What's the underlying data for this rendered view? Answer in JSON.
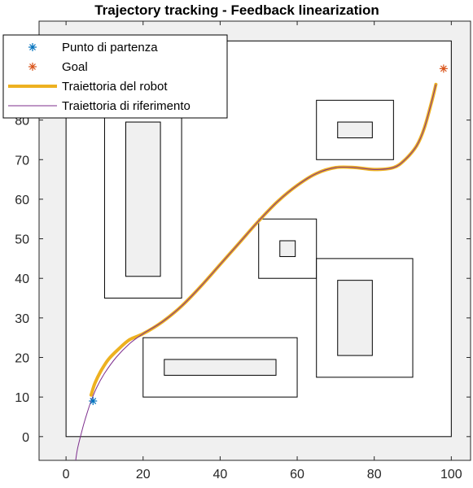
{
  "chart_data": {
    "type": "line",
    "title": "Trajectory tracking - Feedback linearization",
    "xlabel": "",
    "ylabel": "",
    "xlim": [
      -7,
      105
    ],
    "ylim": [
      -6,
      105
    ],
    "xticks": [
      0,
      20,
      40,
      60,
      80,
      100
    ],
    "yticks": [
      0,
      10,
      20,
      30,
      40,
      50,
      60,
      70,
      80
    ],
    "grid": false,
    "legend_position": "top-left",
    "background_color": "#f0f0f0",
    "obstacles_outer": [
      {
        "x0": 10,
        "x1": 30,
        "y0": 35,
        "y1": 84
      },
      {
        "x0": 20,
        "x1": 60,
        "y0": 10,
        "y1": 25
      },
      {
        "x0": 50,
        "x1": 65,
        "y0": 40,
        "y1": 55
      },
      {
        "x0": 65,
        "x1": 90,
        "y0": 15,
        "y1": 45
      },
      {
        "x0": 65,
        "x1": 85,
        "y0": 70,
        "y1": 85
      }
    ],
    "obstacles_inner": [
      {
        "x0": 15.5,
        "x1": 24.5,
        "y0": 40.5,
        "y1": 79.5
      },
      {
        "x0": 25.5,
        "x1": 54.5,
        "y0": 15.5,
        "y1": 19.5
      },
      {
        "x0": 55.5,
        "x1": 59.5,
        "y0": 45.5,
        "y1": 49.5
      },
      {
        "x0": 70.5,
        "x1": 79.5,
        "y0": 20.5,
        "y1": 39.5
      },
      {
        "x0": 70.5,
        "x1": 79.5,
        "y0": 75.5,
        "y1": 79.5
      }
    ],
    "workspace": {
      "x0": 0,
      "x1": 100,
      "y0": 0,
      "y1": 100
    },
    "series": [
      {
        "name": "Punto di partenza",
        "marker": "asterisk",
        "color": "#0072bd",
        "x": [
          7
        ],
        "y": [
          9
        ]
      },
      {
        "name": "Goal",
        "marker": "asterisk",
        "color": "#d95319",
        "x": [
          98
        ],
        "y": [
          93
        ]
      },
      {
        "name": "Traiettoria del robot",
        "line_style": "thick",
        "color": "#edb120",
        "x": [
          6.5,
          7.5,
          9,
          11,
          13.5,
          16.5,
          20,
          25,
          30,
          35,
          40,
          45,
          50,
          55,
          60,
          65,
          70,
          75,
          80,
          85,
          88,
          91,
          93,
          95,
          96
        ],
        "y": [
          10.5,
          13.5,
          16.5,
          19.5,
          22,
          24.5,
          26,
          29,
          33,
          38,
          43.5,
          49,
          54.5,
          59.5,
          63.5,
          66.5,
          68,
          68,
          67.5,
          68,
          70,
          73.5,
          78,
          85,
          89
        ]
      },
      {
        "name": "Traiettoria di riferimento",
        "line_style": "thin",
        "color": "#7e2f8e",
        "x": [
          2.5,
          3,
          4,
          5,
          6.5,
          8,
          10,
          13,
          16.5,
          20,
          25,
          30,
          35,
          40,
          45,
          50,
          55,
          60,
          65,
          70,
          75,
          80,
          85,
          88,
          91,
          93,
          95,
          96
        ],
        "y": [
          -6,
          -3,
          1,
          4.5,
          9,
          12.5,
          16,
          20,
          23.5,
          26,
          29,
          33,
          38,
          43.5,
          49,
          54.5,
          59.5,
          63.5,
          66.5,
          68,
          68,
          67.5,
          68,
          70,
          73.5,
          78,
          85,
          89
        ]
      }
    ]
  }
}
